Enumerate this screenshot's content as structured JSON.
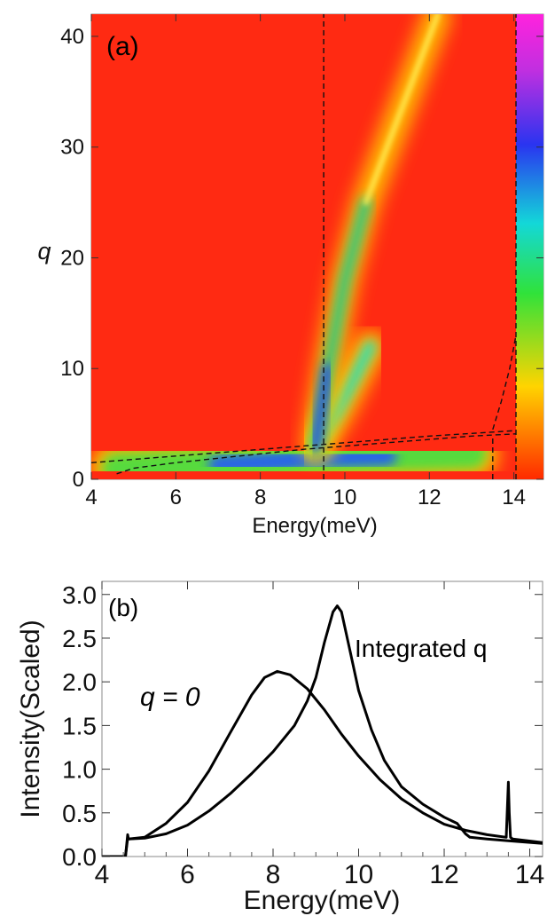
{
  "chart_data": [
    {
      "type": "heatmap",
      "panel_label": "(a)",
      "xlabel": "Energy(meV)",
      "ylabel": "q",
      "xlim": [
        4,
        14.7
      ],
      "ylim": [
        0,
        42
      ],
      "x_ticks": [
        4,
        6,
        8,
        10,
        12,
        14
      ],
      "y_ticks": [
        0,
        10,
        20,
        30,
        40
      ],
      "colormap": "rainbow (red background, yellow-green-cyan-blue-magenta for higher values)",
      "features": [
        {
          "feature": "bright ridge",
          "x": [
            9.3,
            9.6,
            10.0,
            10.5,
            11.0,
            11.5,
            12.2
          ],
          "y": [
            3,
            10,
            18,
            25,
            30,
            35,
            42
          ]
        },
        {
          "feature": "bright branch",
          "x": [
            9.3,
            9.8,
            10.2,
            10.6
          ],
          "y": [
            3,
            6,
            9,
            12
          ]
        },
        {
          "feature": "low-q band",
          "x": [
            4.6,
            6,
            7,
            8,
            9,
            10,
            11,
            12,
            13
          ],
          "y": [
            1,
            1.2,
            1.3,
            1.5,
            1.8,
            2,
            2.1,
            2.2,
            2.3
          ]
        }
      ],
      "dashed_lines": [
        {
          "x": [
            9.5,
            9.5
          ],
          "y": [
            0,
            42
          ]
        },
        {
          "x": [
            14.05,
            14.05
          ],
          "y": [
            0,
            42
          ]
        },
        {
          "x": [
            13.5,
            13.5
          ],
          "y": [
            0,
            4
          ]
        },
        {
          "x": [
            4.0,
            6,
            8,
            10,
            12,
            14.05
          ],
          "y": [
            1.5,
            2.1,
            2.7,
            3.3,
            3.9,
            4.4
          ]
        },
        {
          "x": [
            4.6,
            5,
            6,
            7,
            8,
            9,
            10,
            11,
            12,
            13,
            14.05
          ],
          "y": [
            0.5,
            1.0,
            1.5,
            1.9,
            2.3,
            2.7,
            3.0,
            3.3,
            3.6,
            3.9,
            4.1
          ]
        },
        {
          "x": [
            13.5,
            13.7,
            13.9,
            14.05
          ],
          "y": [
            4.5,
            7,
            10,
            13
          ]
        }
      ]
    },
    {
      "type": "line",
      "panel_label": "(b)",
      "xlabel": "Energy(meV)",
      "ylabel": "Intensity(Scaled)",
      "xlim": [
        4,
        14.3
      ],
      "ylim": [
        0,
        3.15
      ],
      "x_ticks": [
        4,
        6,
        8,
        10,
        12,
        14
      ],
      "y_ticks": [
        "0.0",
        "0.5",
        "1.0",
        "1.5",
        "2.0",
        "2.5",
        "3.0"
      ],
      "annotations": [
        "q = 0",
        "Integrated q"
      ],
      "series": [
        {
          "x": [
            4.0,
            4.55,
            4.6,
            4.62,
            5.0,
            5.5,
            6.0,
            6.5,
            7.0,
            7.5,
            7.8,
            8.1,
            8.4,
            8.8,
            9.2,
            9.6,
            10.0,
            10.5,
            11.0,
            11.5,
            12.0,
            12.5,
            13.0,
            13.45,
            13.5,
            13.52,
            13.55,
            13.6,
            14.3
          ],
          "y": [
            0.0,
            0.0,
            0.25,
            0.2,
            0.22,
            0.38,
            0.62,
            0.98,
            1.42,
            1.85,
            2.05,
            2.12,
            2.08,
            1.92,
            1.68,
            1.4,
            1.15,
            0.88,
            0.66,
            0.5,
            0.37,
            0.3,
            0.25,
            0.22,
            0.85,
            0.5,
            0.22,
            0.2,
            0.16
          ]
        },
        {
          "x": [
            4.0,
            4.55,
            4.6,
            4.62,
            5.0,
            5.5,
            6.0,
            6.5,
            7.0,
            7.5,
            8.0,
            8.5,
            8.8,
            9.0,
            9.2,
            9.4,
            9.5,
            9.6,
            9.8,
            10.0,
            10.3,
            10.6,
            11.0,
            11.5,
            12.0,
            12.3,
            12.5,
            12.6,
            13.0,
            13.5,
            14.3
          ],
          "y": [
            0.0,
            0.0,
            0.21,
            0.2,
            0.21,
            0.26,
            0.36,
            0.52,
            0.72,
            0.95,
            1.2,
            1.5,
            1.78,
            2.05,
            2.45,
            2.8,
            2.87,
            2.8,
            2.35,
            1.9,
            1.45,
            1.1,
            0.8,
            0.6,
            0.45,
            0.38,
            0.26,
            0.22,
            0.2,
            0.18,
            0.15
          ]
        }
      ]
    }
  ]
}
